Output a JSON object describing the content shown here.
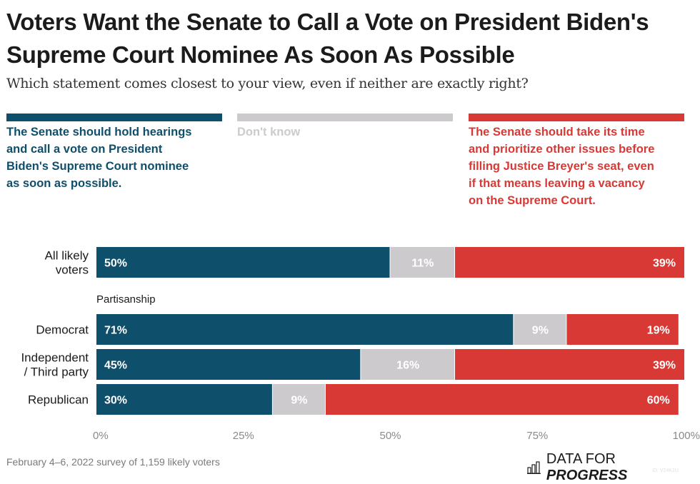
{
  "header": {
    "title": "Voters Want the Senate to Call a Vote on President Biden's Supreme Court Nominee As Soon As Possible",
    "subtitle": "Which statement comes closest to your view, even if neither are exactly right?"
  },
  "colors": {
    "vote_soon": "#0e4f6c",
    "dont_know": "#cdcacd",
    "take_time": "#d93935",
    "axis_text": "#8a8a8a",
    "row_label": "#1b1b1b"
  },
  "chart_data": {
    "type": "bar",
    "orientation": "horizontal",
    "stacked": true,
    "title": "Voters Want the Senate to Call a Vote on President Biden's Supreme Court Nominee As Soon As Possible",
    "subtitle": "Which statement comes closest to your view, even if neither are exactly right?",
    "categories": [
      "All likely voters",
      "Democrat",
      "Independent / Third party",
      "Republican"
    ],
    "category_lines": [
      [
        "All likely",
        "voters"
      ],
      [
        "Democrat"
      ],
      [
        "Independent",
        "/ Third party"
      ],
      [
        "Republican"
      ]
    ],
    "group_label": "Partisanship",
    "group_label_before_index": 1,
    "series": [
      {
        "name": "The Senate should hold hearings and call a vote on President Biden's Supreme Court nominee as soon as possible.",
        "color_key": "vote_soon",
        "values": [
          50,
          71,
          45,
          30
        ],
        "labels": [
          "50%",
          "71%",
          "45%",
          "30%"
        ],
        "label_align": "left"
      },
      {
        "name": "Don't know",
        "color_key": "dont_know",
        "values": [
          11,
          9,
          16,
          9
        ],
        "labels": [
          "11%",
          "9%",
          "16%",
          "9%"
        ],
        "label_align": "center"
      },
      {
        "name": "The Senate should take its time and prioritize other issues before filling Justice Breyer's seat, even if that means leaving a vacancy on the Supreme Court.",
        "color_key": "take_time",
        "values": [
          39,
          19,
          39,
          60
        ],
        "labels": [
          "39%",
          "19%",
          "39%",
          "60%"
        ],
        "label_align": "right"
      }
    ],
    "legend": {
      "placement": "top",
      "items": [
        {
          "lines": [
            "The Senate should hold hearings",
            "and call a vote on President",
            "Biden's Supreme Court nominee",
            "as soon as possible."
          ],
          "color_key": "vote_soon"
        },
        {
          "lines": [
            "Don't know"
          ],
          "color_key": "dont_know"
        },
        {
          "lines": [
            "The Senate should take its time",
            "and prioritize other issues before",
            "filling Justice Breyer's seat, even",
            "if that means leaving a vacancy",
            "on the Supreme Court."
          ],
          "color_key": "take_time"
        }
      ]
    },
    "xlim": [
      0,
      100
    ],
    "xticks": [
      0,
      25,
      50,
      75,
      100
    ],
    "xtick_labels": [
      "0%",
      "25%",
      "50%",
      "75%",
      "100%"
    ],
    "xlabel": "",
    "ylabel": "",
    "grid": false
  },
  "footer": {
    "source": "February 4–6, 2022 survey of 1,159 likely voters",
    "brand_regular": "DATA FOR",
    "brand_bold": "PROGRESS",
    "chart_id": "ID: V24K2U"
  }
}
